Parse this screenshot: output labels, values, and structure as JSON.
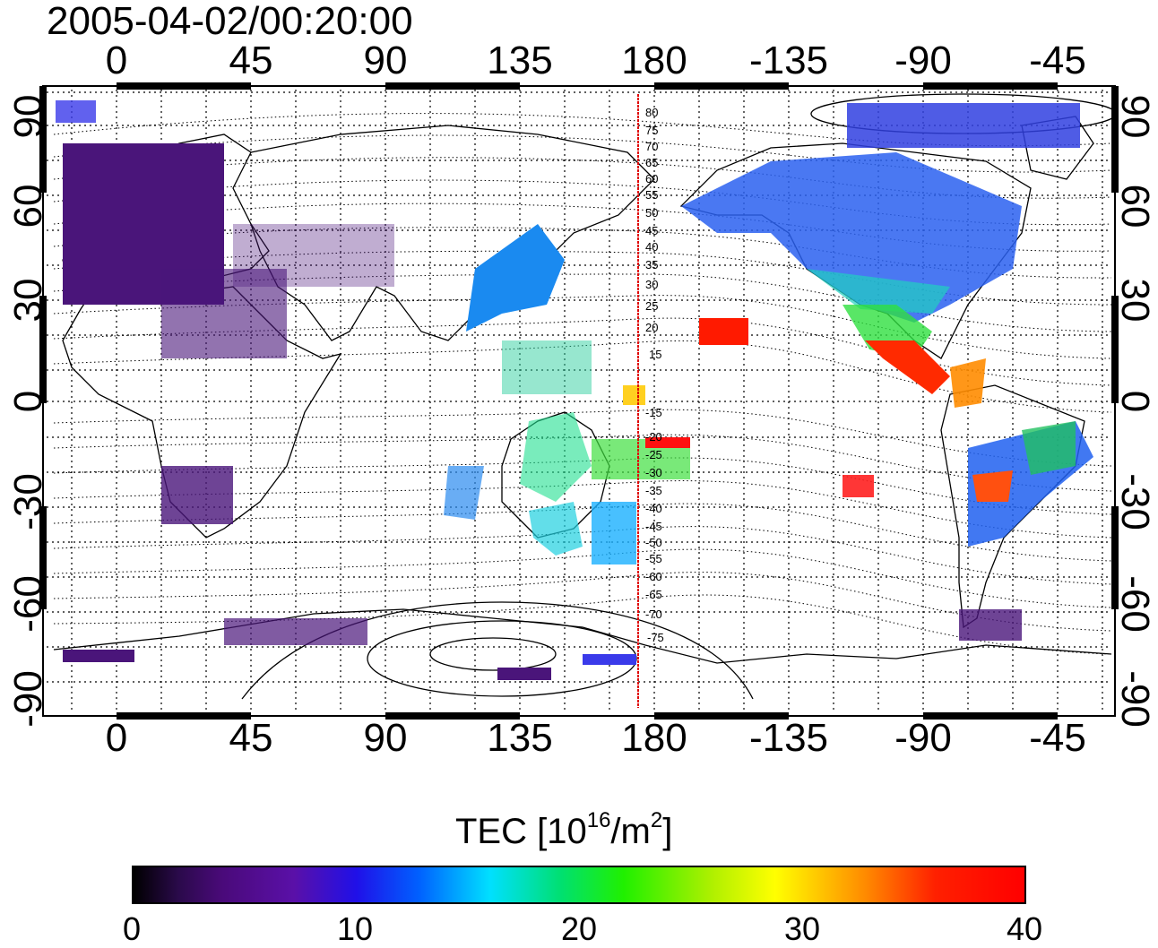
{
  "title": "2005-04-02/00:20:00",
  "lon_ticks": [
    "0",
    "45",
    "90",
    "135",
    "180",
    "-135",
    "-90",
    "-45"
  ],
  "lat_ticks": [
    "90",
    "60",
    "30",
    "0",
    "-30",
    "-60",
    "-90"
  ],
  "colorbar": {
    "title_main": "TEC  [10",
    "title_exp": "16",
    "title_unit": "/m",
    "title_unit_exp": "2",
    "title_close": "]",
    "ticks": [
      "0",
      "10",
      "20",
      "30",
      "40"
    ],
    "range": [
      0,
      40
    ]
  },
  "contour_labels": [
    "80",
    "75",
    "70",
    "65",
    "60",
    "55",
    "50",
    "45",
    "40",
    "35",
    "30",
    "25",
    "20",
    "15",
    "-15",
    "-20",
    "-25",
    "-30",
    "-35",
    "-40",
    "-45",
    "-50",
    "-55",
    "-60",
    "-65",
    "-70",
    "-75"
  ],
  "colors": {
    "background": "#ffffff",
    "meridian_marker": "#e00000"
  }
}
